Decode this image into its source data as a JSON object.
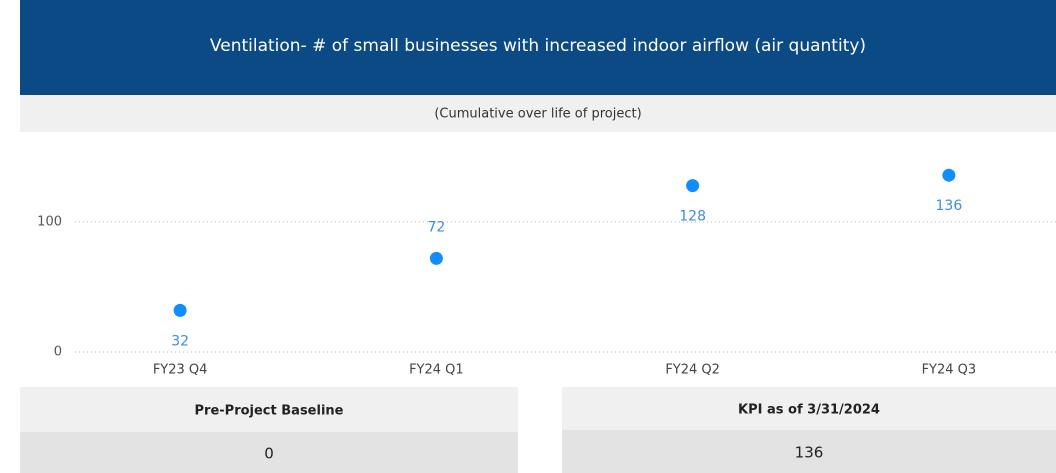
{
  "chart_data": {
    "type": "scatter",
    "title": "Ventilation- # of small businesses with increased indoor airflow (air quantity)",
    "subtitle": "(Cumulative over life of project)",
    "categories": [
      "FY23 Q4",
      "FY24 Q1",
      "FY24 Q2",
      "FY24 Q3"
    ],
    "values": [
      32,
      72,
      128,
      136
    ],
    "label_positions": [
      "below",
      "above",
      "below",
      "below"
    ],
    "color": "#118dff",
    "ylim": [
      0,
      150
    ],
    "yticks": [
      0,
      100
    ],
    "grid": true
  },
  "cards": [
    {
      "title": "Pre-Project Baseline",
      "value": 0
    },
    {
      "title": "KPI as of 3/31/2024",
      "value": 136
    }
  ]
}
